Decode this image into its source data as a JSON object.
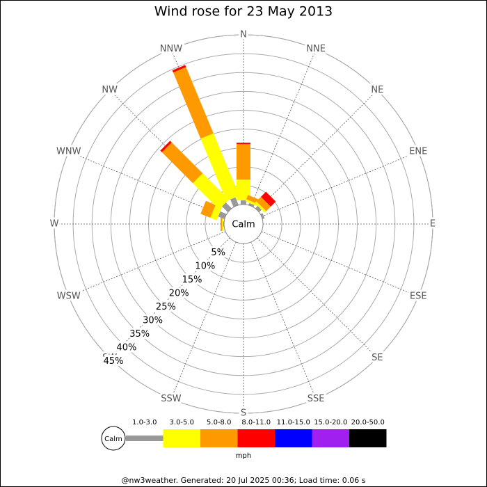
{
  "chart_data": {
    "type": "windrose",
    "title": "Wind rose for 23 May 2013",
    "categories": [
      "N",
      "NNE",
      "NE",
      "ENE",
      "E",
      "ESE",
      "SE",
      "SSE",
      "S",
      "SSW",
      "SW",
      "WSW",
      "W",
      "WNW",
      "NW",
      "NNW"
    ],
    "series": [
      {
        "name": "1.0-3.0",
        "color": "#999999",
        "values": [
          1.1,
          0.6,
          0.9,
          0.6,
          0,
          0,
          0,
          0,
          0,
          0,
          0,
          0,
          0.2,
          1.8,
          2.2,
          2.2
        ]
      },
      {
        "name": "3.0-5.0",
        "color": "#ffff00",
        "values": [
          5.5,
          0.6,
          0.6,
          0,
          0,
          0,
          0,
          0,
          0,
          0,
          0,
          0,
          0.3,
          1.8,
          9.8,
          17.9
        ]
      },
      {
        "name": "5.0-8.0",
        "color": "#ff9900",
        "values": [
          9.4,
          1.2,
          1.7,
          0,
          0,
          0,
          0,
          0,
          0,
          0,
          0,
          0,
          0.4,
          2.8,
          11.6,
          19.0
        ]
      },
      {
        "name": "8.0-11.0",
        "color": "#ff0000",
        "values": [
          0.4,
          0,
          1.9,
          0,
          0,
          0,
          0,
          0,
          0,
          0,
          0,
          0,
          0,
          0,
          0.6,
          0.6
        ]
      },
      {
        "name": "11.0-15.0",
        "color": "#0000ff",
        "values": [
          0,
          0,
          0,
          0,
          0,
          0,
          0,
          0,
          0,
          0,
          0,
          0,
          0,
          0,
          0,
          0
        ]
      },
      {
        "name": "15.0-20.0",
        "color": "#a020f0",
        "values": [
          0,
          0,
          0,
          0,
          0,
          0,
          0,
          0,
          0,
          0,
          0,
          0,
          0,
          0,
          0,
          0
        ]
      },
      {
        "name": "20.0-50.0",
        "color": "#000000",
        "values": [
          0,
          0,
          0,
          0,
          0,
          0,
          0,
          0,
          0,
          0,
          0,
          0,
          0,
          0,
          0,
          0
        ]
      }
    ],
    "rlim": [
      0,
      45
    ],
    "rticks": [
      {
        "value": 5,
        "label": "5%"
      },
      {
        "value": 10,
        "label": "10%"
      },
      {
        "value": 15,
        "label": "15%"
      },
      {
        "value": 20,
        "label": "20%"
      },
      {
        "value": 25,
        "label": "25%"
      },
      {
        "value": 30,
        "label": "30%"
      },
      {
        "value": 35,
        "label": "35%"
      },
      {
        "value": 40,
        "label": "40%"
      },
      {
        "value": 45,
        "label": "45%"
      }
    ],
    "calm_label": "Calm",
    "unit": "mph",
    "footer": "@nw3weather. Generated: 20 Jul 2025 00:36; Load time: 0.06 s"
  }
}
